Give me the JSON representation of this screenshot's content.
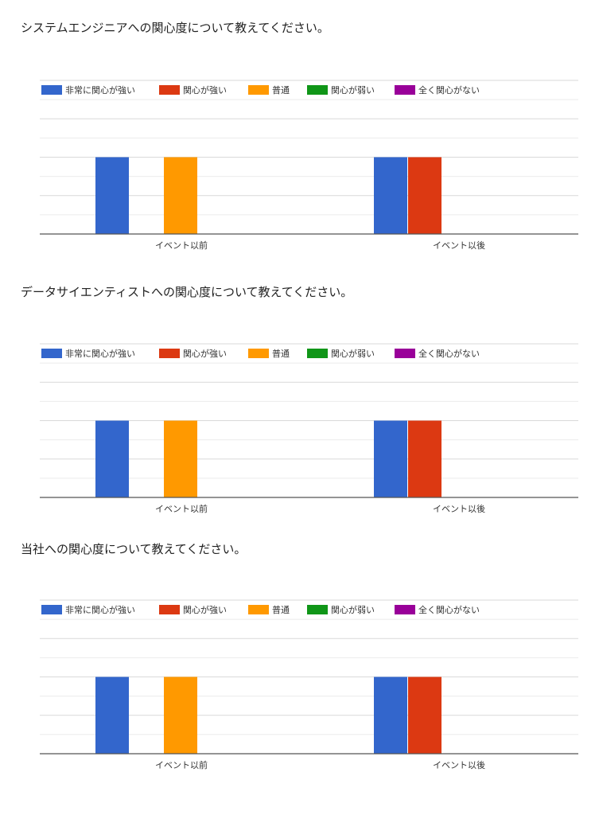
{
  "questions": [
    {
      "title": "システムエンジニアへの関心度について教えてください。"
    },
    {
      "title": "データサイエンティストへの関心度について教えてください。"
    },
    {
      "title": "当社への関心度について教えてください。"
    }
  ],
  "chart_data": [
    {
      "type": "bar",
      "categories": [
        "イベント以前",
        "イベント以後"
      ],
      "legend_position": "top",
      "grid": true,
      "ylim": [
        0,
        8
      ],
      "series": [
        {
          "name": "非常に関心が強い",
          "color": "#3366cc",
          "values": [
            4,
            4
          ]
        },
        {
          "name": "関心が強い",
          "color": "#dc3912",
          "values": [
            0,
            4
          ]
        },
        {
          "name": "普通",
          "color": "#ff9900",
          "values": [
            4,
            0
          ]
        },
        {
          "name": "関心が弱い",
          "color": "#109618",
          "values": [
            0,
            0
          ]
        },
        {
          "name": "全く関心がない",
          "color": "#990099",
          "values": [
            0,
            0
          ]
        }
      ]
    },
    {
      "type": "bar",
      "categories": [
        "イベント以前",
        "イベント以後"
      ],
      "legend_position": "top",
      "grid": true,
      "ylim": [
        0,
        8
      ],
      "series": [
        {
          "name": "非常に関心が強い",
          "color": "#3366cc",
          "values": [
            4,
            4
          ]
        },
        {
          "name": "関心が強い",
          "color": "#dc3912",
          "values": [
            0,
            4
          ]
        },
        {
          "name": "普通",
          "color": "#ff9900",
          "values": [
            4,
            0
          ]
        },
        {
          "name": "関心が弱い",
          "color": "#109618",
          "values": [
            0,
            0
          ]
        },
        {
          "name": "全く関心がない",
          "color": "#990099",
          "values": [
            0,
            0
          ]
        }
      ]
    },
    {
      "type": "bar",
      "categories": [
        "イベント以前",
        "イベント以後"
      ],
      "legend_position": "top",
      "grid": true,
      "ylim": [
        0,
        8
      ],
      "series": [
        {
          "name": "非常に関心が強い",
          "color": "#3366cc",
          "values": [
            4,
            4
          ]
        },
        {
          "name": "関心が強い",
          "color": "#dc3912",
          "values": [
            0,
            4
          ]
        },
        {
          "name": "普通",
          "color": "#ff9900",
          "values": [
            4,
            0
          ]
        },
        {
          "name": "関心が弱い",
          "color": "#109618",
          "values": [
            0,
            0
          ]
        },
        {
          "name": "全く関心がない",
          "color": "#990099",
          "values": [
            0,
            0
          ]
        }
      ]
    }
  ]
}
